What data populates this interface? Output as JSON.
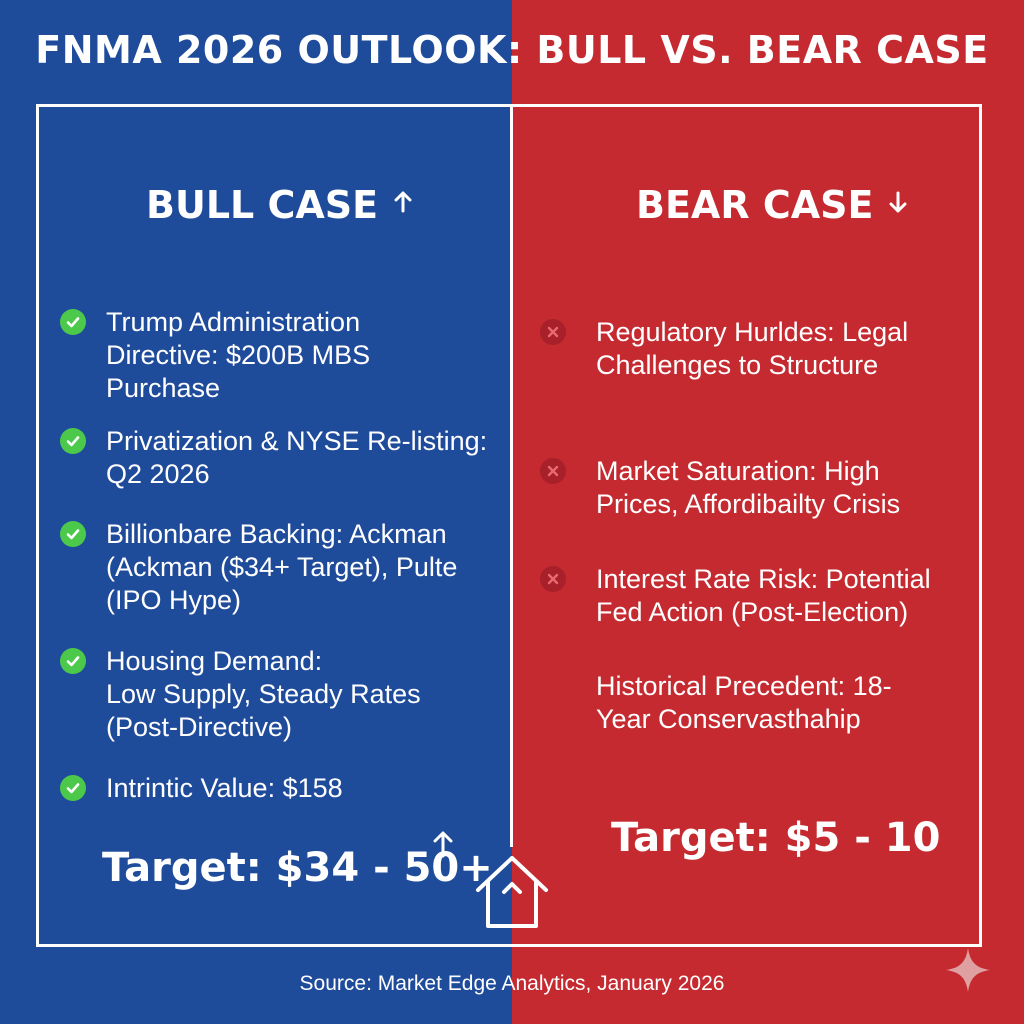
{
  "title": "FNMA 2026 OUTLOOK: BULL VS. BEAR CASE",
  "colors": {
    "bull_bg": "#1f4b9b",
    "bear_bg": "#c42a30",
    "check": "#4cc94a",
    "cross": "#a8202a"
  },
  "bull": {
    "heading": "BULL CASE",
    "heading_icon": "arrow-up-icon",
    "items": [
      {
        "icon": "check-circle-icon",
        "text": "Trump Administration\nDirective: $200B MBS\nPurchase"
      },
      {
        "icon": "check-circle-icon",
        "text": "Privatization & NYSE Re-listing:\nQ2 2026"
      },
      {
        "icon": "check-circle-icon",
        "text": "Billionbare Backing: Ackman\n(Ackman ($34+ Target), Pulte\n(IPO Hype)"
      },
      {
        "icon": "check-circle-icon",
        "text": "Housing Demand:\nLow Supply, Steady Rates\n(Post-Directive)"
      },
      {
        "icon": "check-circle-icon",
        "text": "Intrintic Value: $158"
      }
    ],
    "target": "Target: $34 - 50+"
  },
  "bear": {
    "heading": "BEAR CASE",
    "heading_icon": "arrow-down-icon",
    "items": [
      {
        "icon": "x-circle-icon",
        "text": "Regulatory Hurldes: Legal\nChallenges to Structure"
      },
      {
        "icon": "x-circle-icon",
        "text": "Market Saturation: High\nPrices, Affordibailty Crisis"
      },
      {
        "icon": "x-circle-icon",
        "text": "Interest Rate Risk: Potential\nFed Action (Post-Election)"
      },
      {
        "icon": "none",
        "text": "Historical Precedent: 18-\nYear Conservasthahip"
      }
    ],
    "target": "Target: $5 - 10"
  },
  "source": "Source: Market Edge Analytics, January 2026"
}
